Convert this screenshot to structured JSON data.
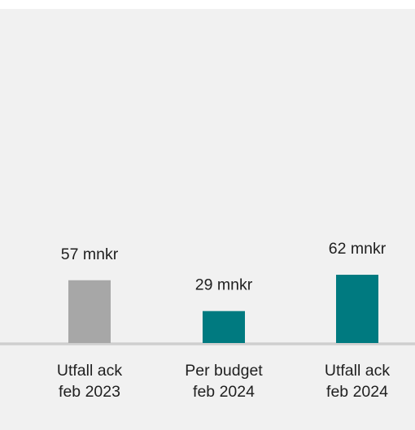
{
  "chart_data": {
    "type": "bar",
    "title": "",
    "xlabel": "",
    "ylabel": "",
    "categories": [
      [
        "Utfall ack",
        "feb 2023"
      ],
      [
        "Per budget",
        "feb 2024"
      ],
      [
        "Utfall ack",
        "feb 2024"
      ]
    ],
    "values": [
      57,
      29,
      62
    ],
    "value_labels": [
      "57 mnkr",
      "29 mnkr",
      "62 mnkr"
    ],
    "unit": "mnkr",
    "ylim": [
      0,
      62
    ],
    "grid": false,
    "legend": "none",
    "colors": [
      "#a7a7a7",
      "#007a80",
      "#007a80"
    ]
  },
  "colors": {
    "panel_background": "#f1f1f1",
    "baseline": "#cfcfcf",
    "text": "#1f1f1f"
  }
}
